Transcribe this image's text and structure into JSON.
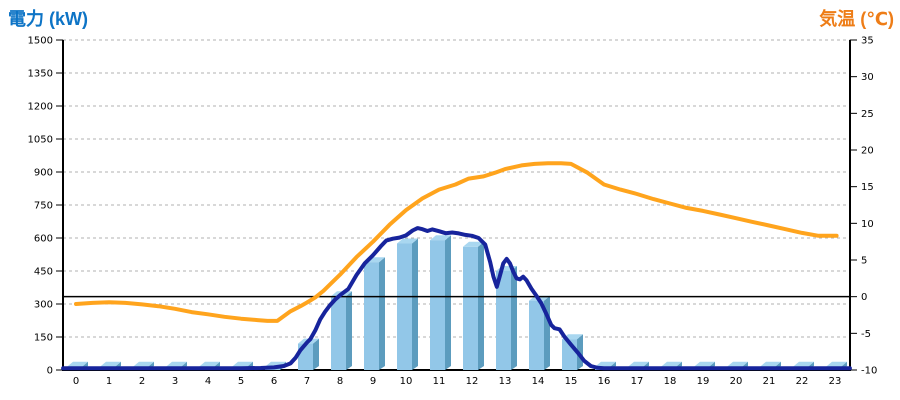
{
  "chart": {
    "title_left_color": "#0D74C6",
    "title_right_color": "#EE7D17"
  },
  "chart_data": {
    "type": "combo-bar-line",
    "title_left": "電力 (kW)",
    "title_right": "気温 (℃)",
    "grid": {
      "style": "dashed",
      "color": "#B0B0B0"
    },
    "x_axis": {
      "labels": [
        "0",
        "1",
        "2",
        "3",
        "4",
        "5",
        "6",
        "7",
        "8",
        "9",
        "10",
        "11",
        "12",
        "13",
        "14",
        "15",
        "16",
        "17",
        "18",
        "19",
        "20",
        "21",
        "22",
        "23"
      ]
    },
    "left_axis": {
      "title": "電力 (kW)",
      "min": 0,
      "max": 1500,
      "step": 150,
      "tick_labels": [
        "0",
        "150",
        "300",
        "450",
        "600",
        "750",
        "900",
        "1050",
        "1200",
        "1350",
        "1500"
      ]
    },
    "right_axis": {
      "title": "気温 (℃)",
      "min": -10,
      "max": 35,
      "step": 5,
      "tick_labels": [
        "-10",
        "-5",
        "0",
        "5",
        "10",
        "15",
        "20",
        "25",
        "30",
        "35"
      ]
    },
    "zero_temp_line": {
      "value_c": 0,
      "color": "#000000"
    },
    "series": [
      {
        "name": "power-bars",
        "type": "bar",
        "axis": "left",
        "unit": "kW",
        "color_front": "#92C7E8",
        "color_top": "#A9D7F0",
        "color_side": "#5C9CBE",
        "values": [
          15,
          15,
          15,
          15,
          15,
          15,
          15,
          120,
          335,
          490,
          575,
          590,
          560,
          450,
          315,
          140,
          15,
          15,
          15,
          15,
          15,
          15,
          15,
          15
        ]
      },
      {
        "name": "power-line",
        "type": "line",
        "axis": "left",
        "unit": "kW",
        "color": "#17249C",
        "width": 4,
        "points": [
          [
            -0.39,
            8
          ],
          [
            1,
            8
          ],
          [
            2,
            8
          ],
          [
            3,
            8
          ],
          [
            4,
            8
          ],
          [
            5,
            8
          ],
          [
            5.6,
            9
          ],
          [
            6,
            12
          ],
          [
            6.3,
            18
          ],
          [
            6.5,
            30
          ],
          [
            6.65,
            55
          ],
          [
            6.8,
            90
          ],
          [
            7,
            125
          ],
          [
            7.1,
            140
          ],
          [
            7.25,
            180
          ],
          [
            7.4,
            230
          ],
          [
            7.55,
            265
          ],
          [
            7.7,
            295
          ],
          [
            7.85,
            320
          ],
          [
            8,
            340
          ],
          [
            8.25,
            368
          ],
          [
            8.5,
            432
          ],
          [
            8.75,
            485
          ],
          [
            9,
            522
          ],
          [
            9.25,
            565
          ],
          [
            9.4,
            588
          ],
          [
            9.6,
            597
          ],
          [
            9.8,
            602
          ],
          [
            10,
            612
          ],
          [
            10.2,
            634
          ],
          [
            10.35,
            645
          ],
          [
            10.5,
            640
          ],
          [
            10.65,
            632
          ],
          [
            10.8,
            639
          ],
          [
            11,
            631
          ],
          [
            11.2,
            622
          ],
          [
            11.4,
            625
          ],
          [
            11.6,
            621
          ],
          [
            11.8,
            614
          ],
          [
            12,
            610
          ],
          [
            12.2,
            600
          ],
          [
            12.4,
            570
          ],
          [
            12.55,
            490
          ],
          [
            12.65,
            425
          ],
          [
            12.75,
            378
          ],
          [
            12.85,
            432
          ],
          [
            12.95,
            485
          ],
          [
            13.05,
            505
          ],
          [
            13.15,
            485
          ],
          [
            13.25,
            447
          ],
          [
            13.35,
            417
          ],
          [
            13.45,
            412
          ],
          [
            13.55,
            424
          ],
          [
            13.65,
            408
          ],
          [
            13.8,
            370
          ],
          [
            13.95,
            338
          ],
          [
            14.1,
            303
          ],
          [
            14.25,
            255
          ],
          [
            14.4,
            205
          ],
          [
            14.5,
            190
          ],
          [
            14.65,
            185
          ],
          [
            14.8,
            152
          ],
          [
            15,
            115
          ],
          [
            15.2,
            80
          ],
          [
            15.4,
            42
          ],
          [
            15.6,
            18
          ],
          [
            15.8,
            10
          ],
          [
            16,
            8
          ],
          [
            17,
            8
          ],
          [
            18,
            8
          ],
          [
            19,
            8
          ],
          [
            20,
            8
          ],
          [
            21,
            8
          ],
          [
            22,
            8
          ],
          [
            23,
            8
          ],
          [
            23.45,
            8
          ]
        ]
      },
      {
        "name": "temperature-line",
        "type": "line",
        "axis": "right",
        "unit": "℃",
        "color": "#FFA41D",
        "width": 4,
        "points": [
          [
            0,
            -1
          ],
          [
            0.5,
            -0.85
          ],
          [
            1,
            -0.75
          ],
          [
            1.5,
            -0.85
          ],
          [
            2,
            -1.05
          ],
          [
            2.5,
            -1.3
          ],
          [
            3,
            -1.65
          ],
          [
            3.5,
            -2.1
          ],
          [
            4,
            -2.4
          ],
          [
            4.5,
            -2.75
          ],
          [
            5,
            -3
          ],
          [
            5.5,
            -3.2
          ],
          [
            5.8,
            -3.3
          ],
          [
            6.1,
            -3.3
          ],
          [
            6.5,
            -2
          ],
          [
            6.8,
            -1.3
          ],
          [
            7,
            -0.8
          ],
          [
            7.25,
            -0.1
          ],
          [
            7.5,
            0.8
          ],
          [
            7.75,
            1.9
          ],
          [
            8,
            3
          ],
          [
            8.5,
            5.4
          ],
          [
            9,
            7.5
          ],
          [
            9.5,
            9.8
          ],
          [
            10,
            11.8
          ],
          [
            10.5,
            13.4
          ],
          [
            11,
            14.6
          ],
          [
            11.5,
            15.3
          ],
          [
            11.9,
            16.1
          ],
          [
            12.35,
            16.4
          ],
          [
            12.7,
            16.9
          ],
          [
            13,
            17.4
          ],
          [
            13.5,
            17.9
          ],
          [
            13.9,
            18.1
          ],
          [
            14.3,
            18.2
          ],
          [
            14.7,
            18.2
          ],
          [
            15,
            18.1
          ],
          [
            15.5,
            16.9
          ],
          [
            16,
            15.3
          ],
          [
            16.5,
            14.6
          ],
          [
            17,
            14
          ],
          [
            17.5,
            13.3
          ],
          [
            18,
            12.7
          ],
          [
            18.5,
            12.1
          ],
          [
            19,
            11.7
          ],
          [
            19.5,
            11.2
          ],
          [
            20,
            10.7
          ],
          [
            20.5,
            10.2
          ],
          [
            21,
            9.7
          ],
          [
            21.5,
            9.2
          ],
          [
            22,
            8.7
          ],
          [
            22.5,
            8.3
          ],
          [
            23.05,
            8.3
          ]
        ]
      }
    ]
  }
}
